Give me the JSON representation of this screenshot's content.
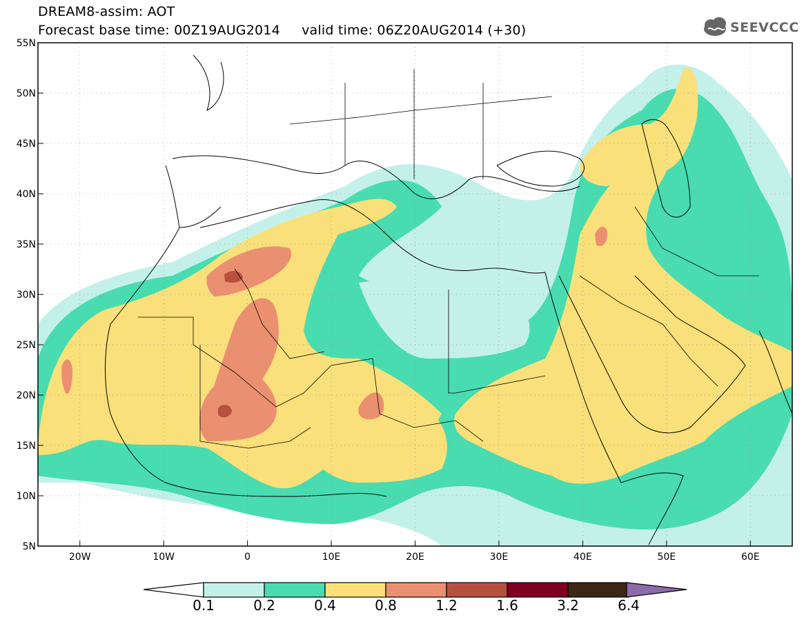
{
  "title": {
    "line1": "DREAM8-assim: AOT",
    "line2_base": "Forecast base time: 00Z19AUG2014",
    "line2_valid": "valid time: 06Z20AUG2014 (+30)"
  },
  "logo": {
    "text": "SEEVCCC",
    "icon": "cloud-icon"
  },
  "map": {
    "lon_range": [
      -25,
      65
    ],
    "lat_range": [
      5,
      55
    ],
    "lat_ticks": [
      "55N",
      "50N",
      "45N",
      "40N",
      "35N",
      "30N",
      "25N",
      "20N",
      "15N",
      "10N",
      "5N"
    ],
    "lon_ticks": [
      "20W",
      "10W",
      "0",
      "10E",
      "20E",
      "30E",
      "40E",
      "50E",
      "60E"
    ]
  },
  "colorbar": {
    "labels": [
      "0.1",
      "0.2",
      "0.4",
      "0.8",
      "1.2",
      "1.6",
      "3.2",
      "6.4"
    ],
    "colors": [
      "#c4f0ea",
      "#48dcb0",
      "#f9e07a",
      "#ea9070",
      "#b85040",
      "#800020",
      "#3e2614",
      "#8d6aaa"
    ],
    "under_color": "#ffffff"
  },
  "legend_colors": {
    "c01": "#c4f0ea",
    "c02": "#48dcb0",
    "c04": "#f9e07a",
    "c08": "#ea9070",
    "c12": "#b85040"
  }
}
